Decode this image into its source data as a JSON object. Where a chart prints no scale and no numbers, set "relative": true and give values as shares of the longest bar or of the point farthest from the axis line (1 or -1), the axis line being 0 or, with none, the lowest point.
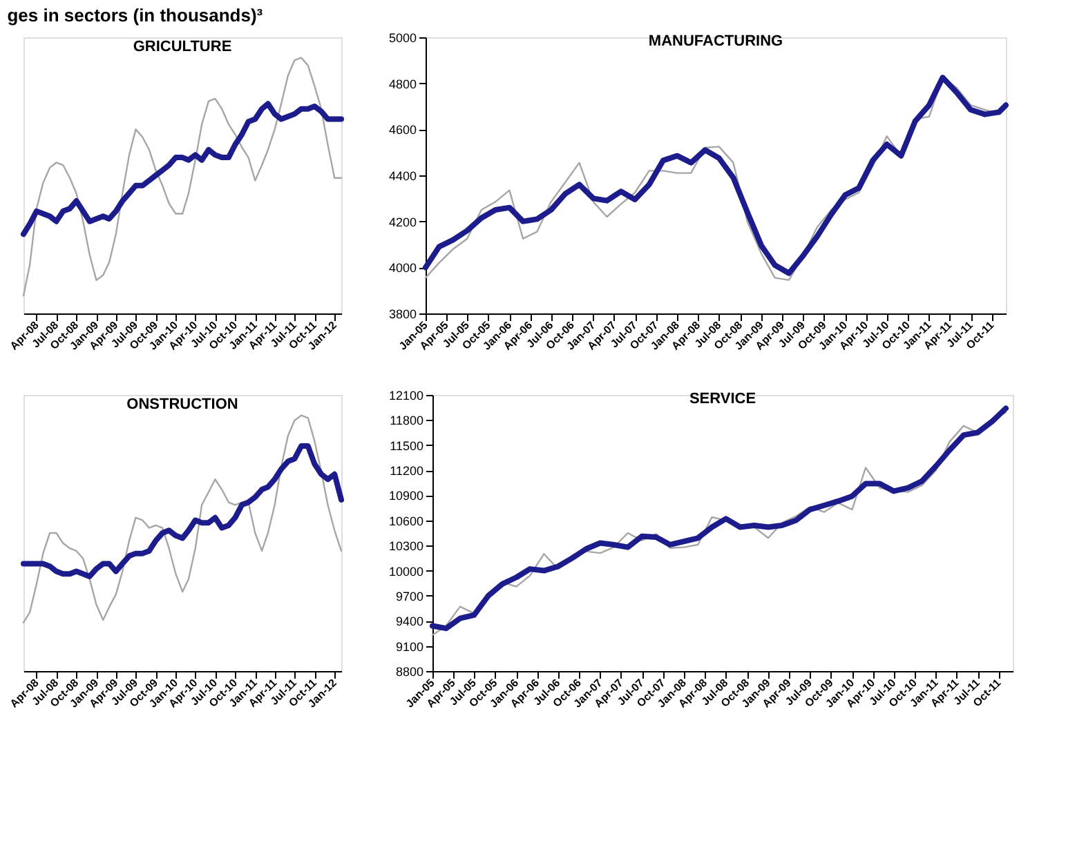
{
  "chart_data": [
    {
      "type": "line",
      "title": "GRICULTURE",
      "annotations": [
        "ges in sectors (in thousands)³"
      ],
      "relative": true,
      "grid": false,
      "legend": false,
      "x": [
        "2008-02",
        "2008-03",
        "2008-04",
        "2008-05",
        "2008-06",
        "2008-07",
        "2008-08",
        "2008-09",
        "2008-10",
        "2008-11",
        "2008-12",
        "2009-01",
        "2009-02",
        "2009-03",
        "2009-04",
        "2009-05",
        "2009-06",
        "2009-07",
        "2009-08",
        "2009-09",
        "2009-10",
        "2009-11",
        "2009-12",
        "2010-01",
        "2010-02",
        "2010-03",
        "2010-04",
        "2010-05",
        "2010-06",
        "2010-07",
        "2010-08",
        "2010-09",
        "2010-10",
        "2010-11",
        "2010-12",
        "2011-01",
        "2011-02",
        "2011-03",
        "2011-04",
        "2011-05",
        "2011-06",
        "2011-07",
        "2011-08",
        "2011-09",
        "2011-10",
        "2011-11",
        "2011-12",
        "2012-01",
        "2012-02"
      ],
      "xlim": [
        "2008-02",
        "2012-02"
      ],
      "xticks": [
        {
          "value": "2008-04",
          "label": "Apr-08"
        },
        {
          "value": "2008-07",
          "label": "Jul-08"
        },
        {
          "value": "2008-10",
          "label": "Oct-08"
        },
        {
          "value": "2009-01",
          "label": "Jan-09"
        },
        {
          "value": "2009-04",
          "label": "Apr-09"
        },
        {
          "value": "2009-07",
          "label": "Jul-09"
        },
        {
          "value": "2009-10",
          "label": "Oct-09"
        },
        {
          "value": "2010-01",
          "label": "Jan-10"
        },
        {
          "value": "2010-04",
          "label": "Apr-10"
        },
        {
          "value": "2010-07",
          "label": "Jul-10"
        },
        {
          "value": "2010-10",
          "label": "Oct-10"
        },
        {
          "value": "2011-01",
          "label": "Jan-11"
        },
        {
          "value": "2011-04",
          "label": "Apr-11"
        },
        {
          "value": "2011-07",
          "label": "Jul-11"
        },
        {
          "value": "2011-10",
          "label": "Oct-11"
        },
        {
          "value": "2012-01",
          "label": "Jan-12"
        }
      ],
      "series": [
        {
          "color": "#a6a6a6",
          "values": [
            0.07,
            0.19,
            0.41,
            0.51,
            0.57,
            0.59,
            0.58,
            0.53,
            0.47,
            0.36,
            0.23,
            0.13,
            0.15,
            0.2,
            0.31,
            0.47,
            0.62,
            0.72,
            0.69,
            0.64,
            0.56,
            0.5,
            0.43,
            0.39,
            0.39,
            0.47,
            0.6,
            0.74,
            0.83,
            0.84,
            0.8,
            0.74,
            0.7,
            0.65,
            0.61,
            0.52,
            0.58,
            0.64,
            0.72,
            0.82,
            0.93,
            0.99,
            1.0,
            0.97,
            0.89,
            0.8,
            0.66,
            0.53,
            0.53
          ]
        },
        {
          "color": "#1c1c8c",
          "values": [
            0.31,
            0.35,
            0.4,
            0.39,
            0.38,
            0.36,
            0.4,
            0.41,
            0.44,
            0.4,
            0.36,
            0.37,
            0.38,
            0.37,
            0.4,
            0.44,
            0.47,
            0.5,
            0.5,
            0.52,
            0.54,
            0.56,
            0.58,
            0.61,
            0.61,
            0.6,
            0.62,
            0.6,
            0.64,
            0.62,
            0.61,
            0.61,
            0.66,
            0.7,
            0.75,
            0.76,
            0.8,
            0.82,
            0.78,
            0.76,
            0.77,
            0.78,
            0.8,
            0.8,
            0.81,
            0.79,
            0.76,
            0.76,
            0.76
          ]
        }
      ]
    },
    {
      "type": "line",
      "title": "MANUFACTURING",
      "grid": false,
      "legend": false,
      "x": [
        "2005-01",
        "2005-03",
        "2005-05",
        "2005-07",
        "2005-09",
        "2005-11",
        "2006-01",
        "2006-03",
        "2006-05",
        "2006-07",
        "2006-09",
        "2006-11",
        "2007-01",
        "2007-03",
        "2007-05",
        "2007-07",
        "2007-09",
        "2007-11",
        "2008-01",
        "2008-03",
        "2008-05",
        "2008-07",
        "2008-09",
        "2008-11",
        "2009-01",
        "2009-03",
        "2009-05",
        "2009-07",
        "2009-09",
        "2009-11",
        "2010-01",
        "2010-03",
        "2010-05",
        "2010-07",
        "2010-09",
        "2010-11",
        "2011-01",
        "2011-03",
        "2011-05",
        "2011-07",
        "2011-09",
        "2011-11",
        "2011-12"
      ],
      "xlim": [
        "2005-01",
        "2011-12"
      ],
      "xticks": [
        {
          "value": "2005-01",
          "label": "Jan-05"
        },
        {
          "value": "2005-04",
          "label": "Apr-05"
        },
        {
          "value": "2005-07",
          "label": "Jul-05"
        },
        {
          "value": "2005-10",
          "label": "Oct-05"
        },
        {
          "value": "2006-01",
          "label": "Jan-06"
        },
        {
          "value": "2006-04",
          "label": "Apr-06"
        },
        {
          "value": "2006-07",
          "label": "Jul-06"
        },
        {
          "value": "2006-10",
          "label": "Oct-06"
        },
        {
          "value": "2007-01",
          "label": "Jan-07"
        },
        {
          "value": "2007-04",
          "label": "Apr-07"
        },
        {
          "value": "2007-07",
          "label": "Jul-07"
        },
        {
          "value": "2007-10",
          "label": "Oct-07"
        },
        {
          "value": "2008-01",
          "label": "Jan-08"
        },
        {
          "value": "2008-04",
          "label": "Apr-08"
        },
        {
          "value": "2008-07",
          "label": "Jul-08"
        },
        {
          "value": "2008-10",
          "label": "Oct-08"
        },
        {
          "value": "2009-01",
          "label": "Jan-09"
        },
        {
          "value": "2009-04",
          "label": "Apr-09"
        },
        {
          "value": "2009-07",
          "label": "Jul-09"
        },
        {
          "value": "2009-10",
          "label": "Oct-09"
        },
        {
          "value": "2010-01",
          "label": "Jan-10"
        },
        {
          "value": "2010-04",
          "label": "Apr-10"
        },
        {
          "value": "2010-07",
          "label": "Jul-10"
        },
        {
          "value": "2010-10",
          "label": "Oct-10"
        },
        {
          "value": "2011-01",
          "label": "Jan-11"
        },
        {
          "value": "2011-04",
          "label": "Apr-11"
        },
        {
          "value": "2011-07",
          "label": "Jul-11"
        },
        {
          "value": "2011-10",
          "label": "Oct-11"
        }
      ],
      "ylim": [
        3800,
        5000
      ],
      "yticks": [
        3800,
        4000,
        4200,
        4400,
        4600,
        4800,
        5000
      ],
      "series": [
        {
          "color": "#a6a6a6",
          "values": [
            3955,
            4020,
            4080,
            4125,
            4250,
            4285,
            4335,
            4125,
            4155,
            4285,
            4370,
            4455,
            4285,
            4220,
            4275,
            4325,
            4420,
            4420,
            4410,
            4410,
            4520,
            4525,
            4455,
            4200,
            4060,
            3955,
            3945,
            4050,
            4175,
            4250,
            4295,
            4325,
            4440,
            4570,
            4485,
            4645,
            4655,
            4825,
            4780,
            4705,
            4685,
            4665,
            4705
          ]
        },
        {
          "color": "#1c1c8c",
          "values": [
            4000,
            4090,
            4120,
            4160,
            4215,
            4250,
            4260,
            4200,
            4210,
            4250,
            4320,
            4360,
            4300,
            4290,
            4330,
            4295,
            4360,
            4465,
            4485,
            4455,
            4510,
            4475,
            4390,
            4240,
            4095,
            4010,
            3975,
            4050,
            4135,
            4230,
            4315,
            4345,
            4465,
            4535,
            4485,
            4635,
            4705,
            4825,
            4760,
            4685,
            4665,
            4675,
            4705
          ]
        }
      ]
    },
    {
      "type": "line",
      "title": "ONSTRUCTION",
      "relative": true,
      "grid": false,
      "legend": false,
      "x": [
        "2008-02",
        "2008-03",
        "2008-04",
        "2008-05",
        "2008-06",
        "2008-07",
        "2008-08",
        "2008-09",
        "2008-10",
        "2008-11",
        "2008-12",
        "2009-01",
        "2009-02",
        "2009-03",
        "2009-04",
        "2009-05",
        "2009-06",
        "2009-07",
        "2009-08",
        "2009-09",
        "2009-10",
        "2009-11",
        "2009-12",
        "2010-01",
        "2010-02",
        "2010-03",
        "2010-04",
        "2010-05",
        "2010-06",
        "2010-07",
        "2010-08",
        "2010-09",
        "2010-10",
        "2010-11",
        "2010-12",
        "2011-01",
        "2011-02",
        "2011-03",
        "2011-04",
        "2011-05",
        "2011-06",
        "2011-07",
        "2011-08",
        "2011-09",
        "2011-10",
        "2011-11",
        "2011-12",
        "2012-01",
        "2012-02"
      ],
      "xlim": [
        "2008-02",
        "2012-02"
      ],
      "xticks": [
        {
          "value": "2008-04",
          "label": "Apr-08"
        },
        {
          "value": "2008-07",
          "label": "Jul-08"
        },
        {
          "value": "2008-10",
          "label": "Oct-08"
        },
        {
          "value": "2009-01",
          "label": "Jan-09"
        },
        {
          "value": "2009-04",
          "label": "Apr-09"
        },
        {
          "value": "2009-07",
          "label": "Jul-09"
        },
        {
          "value": "2009-10",
          "label": "Oct-09"
        },
        {
          "value": "2010-01",
          "label": "Jan-10"
        },
        {
          "value": "2010-04",
          "label": "Apr-10"
        },
        {
          "value": "2010-07",
          "label": "Jul-10"
        },
        {
          "value": "2010-10",
          "label": "Oct-10"
        },
        {
          "value": "2011-01",
          "label": "Jan-11"
        },
        {
          "value": "2011-04",
          "label": "Apr-11"
        },
        {
          "value": "2011-07",
          "label": "Jul-11"
        },
        {
          "value": "2011-10",
          "label": "Oct-11"
        },
        {
          "value": "2012-01",
          "label": "Jan-12"
        }
      ],
      "series": [
        {
          "color": "#a6a6a6",
          "values": [
            0.19,
            0.23,
            0.34,
            0.46,
            0.54,
            0.54,
            0.5,
            0.48,
            0.47,
            0.44,
            0.36,
            0.26,
            0.2,
            0.25,
            0.3,
            0.39,
            0.51,
            0.6,
            0.59,
            0.56,
            0.57,
            0.56,
            0.48,
            0.38,
            0.31,
            0.36,
            0.48,
            0.65,
            0.7,
            0.75,
            0.71,
            0.66,
            0.65,
            0.66,
            0.66,
            0.54,
            0.47,
            0.54,
            0.65,
            0.8,
            0.92,
            0.98,
            1.0,
            0.99,
            0.9,
            0.78,
            0.65,
            0.55,
            0.47
          ]
        },
        {
          "color": "#1c1c8c",
          "values": [
            0.42,
            0.42,
            0.42,
            0.42,
            0.41,
            0.39,
            0.38,
            0.38,
            0.39,
            0.38,
            0.37,
            0.4,
            0.42,
            0.42,
            0.39,
            0.42,
            0.45,
            0.46,
            0.46,
            0.47,
            0.51,
            0.54,
            0.55,
            0.53,
            0.52,
            0.55,
            0.59,
            0.58,
            0.58,
            0.6,
            0.56,
            0.57,
            0.6,
            0.65,
            0.66,
            0.68,
            0.71,
            0.72,
            0.75,
            0.79,
            0.82,
            0.83,
            0.88,
            0.88,
            0.81,
            0.77,
            0.75,
            0.77,
            0.67
          ]
        }
      ]
    },
    {
      "type": "line",
      "title": "SERVICE",
      "grid": false,
      "legend": false,
      "x": [
        "2005-01",
        "2005-03",
        "2005-05",
        "2005-07",
        "2005-09",
        "2005-11",
        "2006-01",
        "2006-03",
        "2006-05",
        "2006-07",
        "2006-09",
        "2006-11",
        "2007-01",
        "2007-03",
        "2007-05",
        "2007-07",
        "2007-09",
        "2007-11",
        "2008-01",
        "2008-03",
        "2008-05",
        "2008-07",
        "2008-09",
        "2008-11",
        "2009-01",
        "2009-03",
        "2009-05",
        "2009-07",
        "2009-09",
        "2009-11",
        "2010-01",
        "2010-03",
        "2010-05",
        "2010-07",
        "2010-09",
        "2010-11",
        "2011-01",
        "2011-03",
        "2011-05",
        "2011-07",
        "2011-09",
        "2011-11"
      ],
      "xlim": [
        "2005-01",
        "2011-12"
      ],
      "xticks": [
        {
          "value": "2005-01",
          "label": "Jan-05"
        },
        {
          "value": "2005-04",
          "label": "Apr-05"
        },
        {
          "value": "2005-07",
          "label": "Jul-05"
        },
        {
          "value": "2005-10",
          "label": "Oct-05"
        },
        {
          "value": "2006-01",
          "label": "Jan-06"
        },
        {
          "value": "2006-04",
          "label": "Apr-06"
        },
        {
          "value": "2006-07",
          "label": "Jul-06"
        },
        {
          "value": "2006-10",
          "label": "Oct-06"
        },
        {
          "value": "2007-01",
          "label": "Jan-07"
        },
        {
          "value": "2007-04",
          "label": "Apr-07"
        },
        {
          "value": "2007-07",
          "label": "Jul-07"
        },
        {
          "value": "2007-10",
          "label": "Oct-07"
        },
        {
          "value": "2008-01",
          "label": "Jan-08"
        },
        {
          "value": "2008-04",
          "label": "Apr-08"
        },
        {
          "value": "2008-07",
          "label": "Jul-08"
        },
        {
          "value": "2008-10",
          "label": "Oct-08"
        },
        {
          "value": "2009-01",
          "label": "Jan-09"
        },
        {
          "value": "2009-04",
          "label": "Apr-09"
        },
        {
          "value": "2009-07",
          "label": "Jul-09"
        },
        {
          "value": "2009-10",
          "label": "Oct-09"
        },
        {
          "value": "2010-01",
          "label": "Jan-10"
        },
        {
          "value": "2010-04",
          "label": "Apr-10"
        },
        {
          "value": "2010-07",
          "label": "Jul-10"
        },
        {
          "value": "2010-10",
          "label": "Oct-10"
        },
        {
          "value": "2011-01",
          "label": "Jan-11"
        },
        {
          "value": "2011-04",
          "label": "Apr-11"
        },
        {
          "value": "2011-07",
          "label": "Jul-11"
        },
        {
          "value": "2011-10",
          "label": "Oct-11"
        }
      ],
      "ylim": [
        8800,
        12100
      ],
      "yticks": [
        8800,
        9100,
        9400,
        9700,
        10000,
        10300,
        10600,
        10900,
        11200,
        11500,
        11800,
        12100
      ],
      "series": [
        {
          "color": "#a6a6a6",
          "values": [
            9230,
            9340,
            9570,
            9490,
            9680,
            9860,
            9810,
            9940,
            10200,
            10020,
            10180,
            10230,
            10210,
            10280,
            10450,
            10360,
            10440,
            10270,
            10280,
            10310,
            10640,
            10600,
            10520,
            10520,
            10390,
            10570,
            10650,
            10760,
            10700,
            10810,
            10730,
            11230,
            10990,
            10950,
            10940,
            11020,
            11200,
            11540,
            11730,
            11650,
            11810,
            11890
          ]
        },
        {
          "color": "#1c1c8c",
          "values": [
            9340,
            9310,
            9430,
            9470,
            9700,
            9840,
            9920,
            10020,
            10000,
            10050,
            10150,
            10260,
            10330,
            10310,
            10280,
            10410,
            10400,
            10310,
            10350,
            10390,
            10520,
            10620,
            10520,
            10540,
            10520,
            10540,
            10600,
            10730,
            10780,
            10830,
            10890,
            11040,
            11040,
            10950,
            10990,
            11070,
            11250,
            11440,
            11620,
            11650,
            11780,
            11940
          ]
        }
      ]
    }
  ]
}
